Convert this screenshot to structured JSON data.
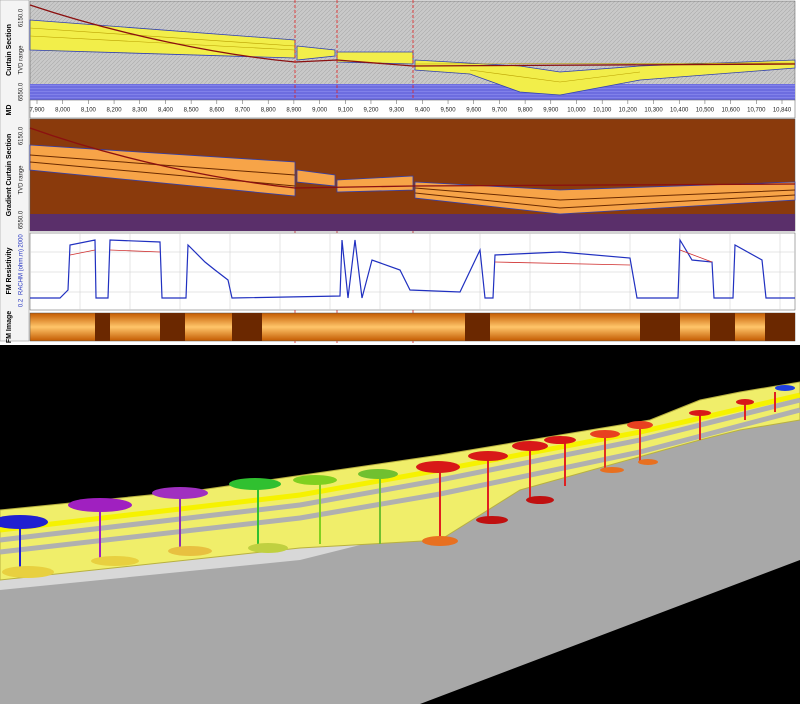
{
  "panels": {
    "curtain": {
      "label": "Curtain Section",
      "axis": "TVD range",
      "top": "6150.0",
      "bottom": "6550.0"
    },
    "md": {
      "label": "MD",
      "ticks": [
        "7,900",
        "8,000",
        "8,100",
        "8,200",
        "8,300",
        "8,400",
        "8,500",
        "8,600",
        "8,700",
        "8,800",
        "8,900",
        "9,000",
        "9,100",
        "9,200",
        "9,300",
        "9,400",
        "9,500",
        "9,600",
        "9,700",
        "9,800",
        "9,900",
        "10,000",
        "10,100",
        "10,200",
        "10,300",
        "10,400",
        "10,500",
        "10,600",
        "10,700",
        "10,840"
      ]
    },
    "gradient": {
      "label": "Gradient Curtain Section",
      "axis": "TVD range",
      "top": "6150.0",
      "bottom": "6550.0"
    },
    "resistivity": {
      "label": "FM Resistivity",
      "axis": "RACHM (ohm.m)",
      "top": "2000",
      "bottom": "0.2"
    },
    "image": {
      "label": "FM Image"
    }
  }
}
